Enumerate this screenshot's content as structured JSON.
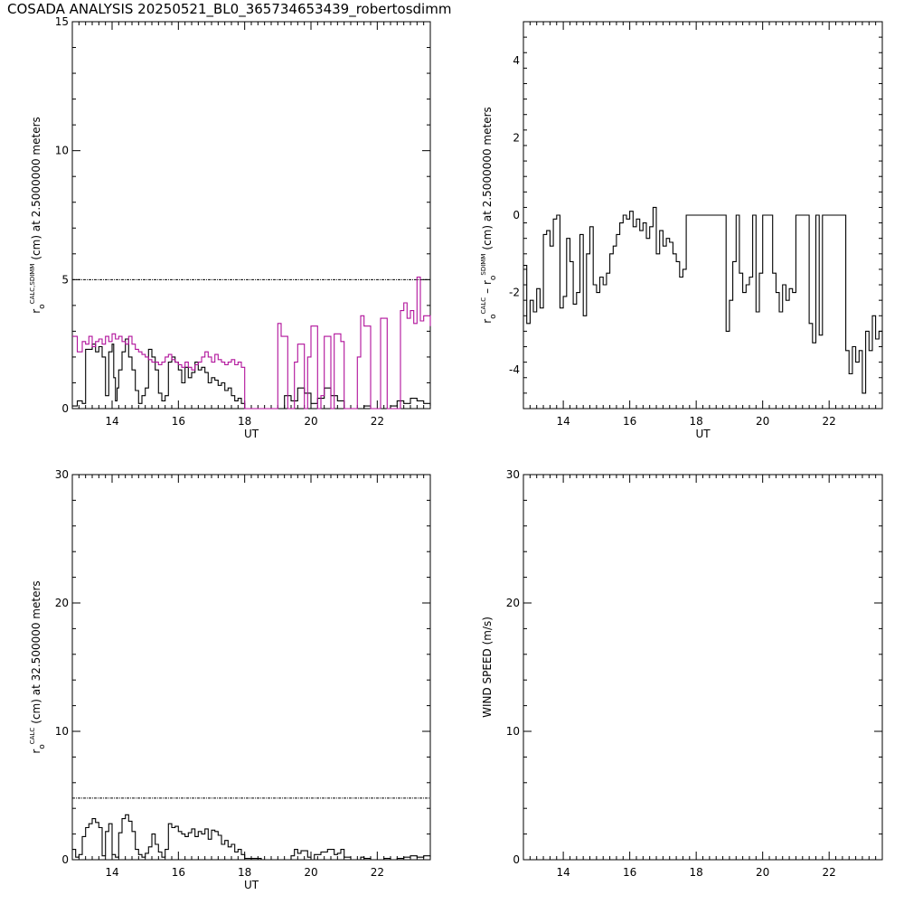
{
  "title": "COSADA ANALYSIS 20250521_BL0_365734653439_robertosdimm",
  "colors": {
    "background": "#ffffff",
    "axis": "#000000",
    "series_black": "#000000",
    "series_magenta": "#b0109a"
  },
  "chart_data": [
    {
      "id": "ro_calc_sdimm_2p5m",
      "type": "line",
      "ylabel_main": "r",
      "ylabel_sub": "o",
      "ylabel_sup": "CALC,SDIMM",
      "ylabel_rest": "(cm)  at  2.5000000 meters",
      "xlabel": "UT",
      "xlim": [
        12.8,
        23.6
      ],
      "ylim": [
        0,
        15
      ],
      "xticks": [
        14,
        16,
        18,
        20,
        22
      ],
      "yticks": [
        0,
        5,
        10,
        15
      ],
      "reference_line": 5,
      "series": [
        {
          "color": "#000000",
          "x": [
            12.8,
            12.95,
            13.1,
            13.2,
            13.3,
            13.4,
            13.5,
            13.6,
            13.7,
            13.8,
            13.9,
            14.0,
            14.05,
            14.1,
            14.15,
            14.2,
            14.3,
            14.4,
            14.5,
            14.6,
            14.7,
            14.8,
            14.9,
            15.0,
            15.1,
            15.2,
            15.3,
            15.4,
            15.5,
            15.6,
            15.7,
            15.8,
            15.9,
            16.0,
            16.1,
            16.2,
            16.3,
            16.4,
            16.5,
            16.6,
            16.7,
            16.8,
            16.9,
            17.0,
            17.1,
            17.2,
            17.3,
            17.4,
            17.5,
            17.6,
            17.7,
            17.8,
            17.9,
            18.0,
            18.1,
            18.5,
            19.0,
            19.2,
            19.4,
            19.6,
            19.8,
            20.0,
            20.2,
            20.4,
            20.6,
            20.8,
            21.0,
            21.2,
            21.4,
            21.6,
            21.8,
            22.0,
            22.2,
            22.4,
            22.6,
            22.8,
            23.0,
            23.2,
            23.4,
            23.6
          ],
          "y": [
            0.1,
            0.3,
            0.2,
            2.3,
            2.3,
            2.5,
            2.2,
            2.4,
            2.0,
            0.5,
            2.2,
            2.5,
            1.2,
            0.3,
            0.8,
            1.5,
            2.2,
            2.7,
            2.0,
            1.5,
            0.7,
            0.2,
            0.5,
            0.8,
            2.3,
            2.0,
            1.5,
            0.6,
            0.3,
            0.5,
            1.8,
            2.0,
            1.8,
            1.5,
            1.0,
            1.6,
            1.2,
            1.4,
            1.8,
            1.5,
            1.6,
            1.4,
            1.0,
            1.2,
            1.1,
            0.9,
            1.0,
            0.7,
            0.8,
            0.5,
            0.3,
            0.4,
            0.2,
            0.0,
            0.0,
            0.0,
            0.0,
            0.5,
            0.3,
            0.8,
            0.6,
            0.2,
            0.4,
            0.8,
            0.5,
            0.3,
            0.0,
            0.0,
            0.0,
            0.1,
            0.0,
            0.0,
            0.0,
            0.1,
            0.3,
            0.2,
            0.4,
            0.3,
            0.2,
            0.1
          ]
        },
        {
          "color": "#b0109a",
          "x": [
            12.8,
            12.95,
            13.1,
            13.2,
            13.3,
            13.4,
            13.5,
            13.6,
            13.7,
            13.8,
            13.9,
            14.0,
            14.1,
            14.2,
            14.3,
            14.4,
            14.5,
            14.6,
            14.7,
            14.8,
            14.9,
            15.0,
            15.1,
            15.2,
            15.3,
            15.4,
            15.5,
            15.6,
            15.7,
            15.8,
            15.9,
            16.0,
            16.1,
            16.2,
            16.3,
            16.4,
            16.5,
            16.6,
            16.7,
            16.8,
            16.9,
            17.0,
            17.1,
            17.2,
            17.3,
            17.4,
            17.5,
            17.6,
            17.7,
            17.8,
            17.9,
            18.0,
            18.1,
            18.5,
            18.9,
            19.0,
            19.1,
            19.3,
            19.5,
            19.6,
            19.8,
            19.9,
            20.0,
            20.2,
            20.3,
            20.4,
            20.6,
            20.7,
            20.9,
            21.0,
            21.2,
            21.4,
            21.5,
            21.6,
            21.8,
            22.0,
            22.1,
            22.3,
            22.5,
            22.7,
            22.8,
            22.9,
            23.0,
            23.1,
            23.2,
            23.3,
            23.4,
            23.6
          ],
          "y": [
            2.8,
            2.2,
            2.6,
            2.5,
            2.8,
            2.4,
            2.6,
            2.7,
            2.5,
            2.8,
            2.6,
            2.9,
            2.7,
            2.8,
            2.6,
            2.5,
            2.8,
            2.5,
            2.3,
            2.2,
            2.1,
            2.0,
            1.9,
            1.8,
            1.8,
            1.7,
            1.8,
            2.0,
            2.1,
            1.9,
            1.8,
            1.7,
            1.6,
            1.8,
            1.6,
            1.5,
            1.7,
            1.8,
            2.0,
            2.2,
            2.0,
            1.8,
            2.1,
            1.9,
            1.8,
            1.7,
            1.8,
            1.9,
            1.7,
            1.8,
            1.6,
            0.0,
            0.0,
            0.0,
            0.0,
            3.3,
            2.8,
            0.0,
            1.8,
            2.5,
            0.0,
            2.0,
            3.2,
            0.0,
            0.5,
            2.8,
            0.0,
            2.9,
            2.6,
            0.0,
            0.0,
            2.0,
            3.6,
            3.2,
            0.0,
            0.0,
            3.5,
            0.0,
            0.0,
            3.8,
            4.1,
            3.5,
            3.8,
            3.3,
            5.1,
            3.4,
            3.6,
            3.2
          ]
        }
      ]
    },
    {
      "id": "ro_calc_minus_sdimm",
      "type": "line",
      "ylabel_main": "r",
      "ylabel_sub": "o",
      "ylabel_sup": "CALC",
      "ylabel_rest": "–  r",
      "ylabel_sub2": "o",
      "ylabel_sup2": "SDIMM",
      "ylabel_rest2": "(cm)  at  2.5000000 meters",
      "xlabel": "UT",
      "xlim": [
        12.8,
        23.6
      ],
      "ylim": [
        -5,
        5
      ],
      "xticks": [
        14,
        16,
        18,
        20,
        22
      ],
      "yticks": [
        -4,
        -2,
        0,
        2,
        4
      ],
      "series": [
        {
          "color": "#000000",
          "x": [
            12.8,
            12.9,
            13.0,
            13.1,
            13.2,
            13.3,
            13.4,
            13.5,
            13.6,
            13.7,
            13.8,
            13.9,
            14.0,
            14.1,
            14.2,
            14.3,
            14.4,
            14.5,
            14.6,
            14.7,
            14.8,
            14.9,
            15.0,
            15.1,
            15.2,
            15.3,
            15.4,
            15.5,
            15.6,
            15.7,
            15.8,
            15.9,
            16.0,
            16.1,
            16.2,
            16.3,
            16.4,
            16.5,
            16.6,
            16.7,
            16.8,
            16.9,
            17.0,
            17.1,
            17.2,
            17.3,
            17.4,
            17.5,
            17.6,
            17.7,
            17.8,
            17.9,
            18.0,
            18.5,
            18.9,
            19.0,
            19.1,
            19.2,
            19.3,
            19.4,
            19.5,
            19.6,
            19.7,
            19.8,
            19.9,
            20.0,
            20.2,
            20.3,
            20.4,
            20.5,
            20.6,
            20.7,
            20.8,
            20.9,
            21.0,
            21.2,
            21.4,
            21.5,
            21.6,
            21.7,
            21.8,
            22.0,
            22.3,
            22.5,
            22.6,
            22.7,
            22.8,
            22.9,
            23.0,
            23.1,
            23.2,
            23.3,
            23.4,
            23.5,
            23.6
          ],
          "y": [
            -1.3,
            -2.8,
            -2.2,
            -2.5,
            -1.9,
            -2.4,
            -0.5,
            -0.4,
            -0.8,
            -0.1,
            0.0,
            -2.4,
            -2.1,
            -0.6,
            -1.2,
            -2.3,
            -2.0,
            -0.5,
            -2.6,
            -1.0,
            -0.3,
            -1.8,
            -2.0,
            -1.6,
            -1.8,
            -1.5,
            -1.0,
            -0.8,
            -0.5,
            -0.2,
            0.0,
            -0.1,
            0.1,
            -0.3,
            -0.1,
            -0.4,
            -0.2,
            -0.6,
            -0.3,
            0.2,
            -1.0,
            -0.4,
            -0.8,
            -0.6,
            -0.7,
            -1.0,
            -1.2,
            -1.6,
            -1.4,
            0.0,
            0.0,
            0.0,
            0.0,
            0.0,
            -3.0,
            -2.2,
            -1.2,
            0.0,
            -1.5,
            -2.0,
            -1.8,
            -1.6,
            0.0,
            -2.5,
            -1.5,
            0.0,
            0.0,
            -1.5,
            -2.0,
            -2.5,
            -1.8,
            -2.2,
            -1.9,
            -2.0,
            0.0,
            0.0,
            -2.8,
            -3.3,
            0.0,
            -3.1,
            0.0,
            0.0,
            0.0,
            -3.5,
            -4.1,
            -3.4,
            -3.8,
            -3.5,
            -4.6,
            -3.0,
            -3.5,
            -2.6,
            -3.2,
            -3.0,
            -3.4
          ]
        }
      ]
    },
    {
      "id": "ro_calc_32p5m",
      "type": "line",
      "ylabel_main": "r",
      "ylabel_sub": "o",
      "ylabel_sup": "CALC",
      "ylabel_rest": "(cm)  at  32.500000 meters",
      "xlabel": "UT",
      "xlim": [
        12.8,
        23.6
      ],
      "ylim": [
        0,
        30
      ],
      "xticks": [
        14,
        16,
        18,
        20,
        22
      ],
      "yticks": [
        0,
        10,
        20,
        30
      ],
      "reference_line": 4.8,
      "series": [
        {
          "color": "#000000",
          "x": [
            12.8,
            12.9,
            13.0,
            13.1,
            13.2,
            13.3,
            13.4,
            13.5,
            13.6,
            13.7,
            13.8,
            13.9,
            14.0,
            14.1,
            14.2,
            14.3,
            14.4,
            14.5,
            14.6,
            14.7,
            14.8,
            14.9,
            15.0,
            15.1,
            15.2,
            15.3,
            15.4,
            15.5,
            15.6,
            15.7,
            15.8,
            15.9,
            16.0,
            16.1,
            16.2,
            16.3,
            16.4,
            16.5,
            16.6,
            16.7,
            16.8,
            16.9,
            17.0,
            17.1,
            17.2,
            17.3,
            17.4,
            17.5,
            17.6,
            17.7,
            17.8,
            17.9,
            18.0,
            18.5,
            19.0,
            19.4,
            19.5,
            19.6,
            19.7,
            19.9,
            20.0,
            20.1,
            20.3,
            20.5,
            20.7,
            20.8,
            20.9,
            21.0,
            21.2,
            21.4,
            21.5,
            21.6,
            21.8,
            22.0,
            22.2,
            22.4,
            22.6,
            22.8,
            23.0,
            23.2,
            23.4,
            23.6
          ],
          "y": [
            0.8,
            0.2,
            0.4,
            1.8,
            2.5,
            2.8,
            3.2,
            2.9,
            2.5,
            0.3,
            2.2,
            2.8,
            0.4,
            0.2,
            2.1,
            3.2,
            3.5,
            3.0,
            2.2,
            0.8,
            0.4,
            0.2,
            0.5,
            1.0,
            2.0,
            1.2,
            0.6,
            0.2,
            0.8,
            2.8,
            2.5,
            2.6,
            2.2,
            2.0,
            1.8,
            2.1,
            2.4,
            1.8,
            2.2,
            2.0,
            2.4,
            1.6,
            2.3,
            2.2,
            1.9,
            1.2,
            1.5,
            1.0,
            1.2,
            0.6,
            0.8,
            0.4,
            0.1,
            0.0,
            0.0,
            0.3,
            0.8,
            0.5,
            0.7,
            0.2,
            0.0,
            0.4,
            0.6,
            0.8,
            0.4,
            0.5,
            0.8,
            0.2,
            0.0,
            0.0,
            0.2,
            0.1,
            0.0,
            0.0,
            0.1,
            0.0,
            0.1,
            0.2,
            0.3,
            0.2,
            0.3,
            0.2
          ]
        }
      ]
    },
    {
      "id": "wind_speed",
      "type": "line",
      "ylabel_main": "WIND SPEED (m/s)",
      "xlabel": "",
      "xlim": [
        12.8,
        23.6
      ],
      "ylim": [
        0,
        30
      ],
      "xticks": [
        14,
        16,
        18,
        20,
        22
      ],
      "yticks": [
        0,
        10,
        20,
        30
      ],
      "series": []
    }
  ]
}
